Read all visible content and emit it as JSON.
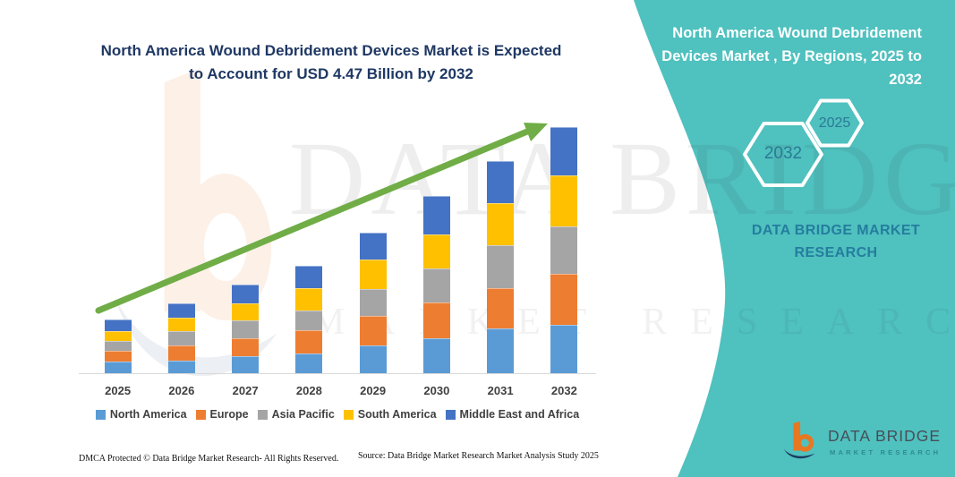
{
  "header": {
    "title_line1": "North America Wound Debridement Devices Market is Expected",
    "title_line2": "to Account for USD 4.47 Billion by 2032"
  },
  "right_panel": {
    "heading_lines": [
      "North America Wound Debridement",
      "Devices Market , By Regions, 2025 to",
      "2032"
    ],
    "hexagons": [
      {
        "label": "2032"
      },
      {
        "label": "2025"
      }
    ],
    "brand_line1": "DATA BRIDGE MARKET",
    "brand_line2": "RESEARCH"
  },
  "watermark": {
    "big_text": "DATA BRIDGE",
    "row_text": "MARKET RESEARCH",
    "logo_icon": "data-bridge-b-logo-watermark"
  },
  "footer": {
    "dmca": "DMCA Protected © Data Bridge Market Research-  All Rights Reserved.",
    "source": "Source: Data Bridge Market Research  Market Analysis Study 2025",
    "logo_icon": "data-bridge-logo",
    "logo_title": "DATA BRIDGE",
    "logo_subtitle": "MARKET RESEARCH"
  },
  "colors": {
    "teal_panel": "#4FC1BF",
    "title_navy": "#1F3864",
    "axis_text": "#404040",
    "axis_line": "#D9D9D9",
    "arrow_green": "#70AD47",
    "hex_label": "#2C7A96",
    "panel_brand_text": "#257D9E",
    "logo_orange": "#E87722",
    "logo_navy": "#1E3A5F",
    "logo_title_gray": "#474F58",
    "logo_subtitle_teal": "#2E8C8F"
  },
  "chart_data": {
    "type": "bar",
    "variant": "stacked-vertical",
    "title": "North America Wound Debridement Devices Market is Expected to Account for USD 4.47 Billion by 2032",
    "xlabel": "",
    "ylabel": "",
    "unit": "USD Billion",
    "values_estimated_from_pixels": true,
    "grid": false,
    "legend_position": "bottom",
    "categories": [
      "2025",
      "2026",
      "2027",
      "2028",
      "2029",
      "2030",
      "2031",
      "2032"
    ],
    "series": [
      {
        "name": "North America",
        "color": "#5B9BD5",
        "values": [
          0.21,
          0.23,
          0.31,
          0.36,
          0.5,
          0.63,
          0.81,
          0.88
        ]
      },
      {
        "name": "Europe",
        "color": "#ED7D31",
        "values": [
          0.2,
          0.28,
          0.33,
          0.42,
          0.54,
          0.65,
          0.73,
          0.93
        ]
      },
      {
        "name": "Asia Pacific",
        "color": "#A5A5A5",
        "values": [
          0.18,
          0.26,
          0.33,
          0.36,
          0.49,
          0.62,
          0.78,
          0.86
        ]
      },
      {
        "name": "South America",
        "color": "#FFC000",
        "values": [
          0.18,
          0.24,
          0.31,
          0.41,
          0.54,
          0.62,
          0.76,
          0.93
        ]
      },
      {
        "name": "Middle East and Africa",
        "color": "#4472C4",
        "values": [
          0.21,
          0.26,
          0.34,
          0.41,
          0.49,
          0.7,
          0.76,
          0.87
        ]
      }
    ],
    "totals": [
      0.98,
      1.27,
      1.62,
      1.96,
      2.56,
      3.22,
      3.84,
      4.47
    ],
    "annotations": {
      "trend_arrow": "upward diagonal arrow from first bar to last bar",
      "headline_value": "USD 4.47 Billion by 2032"
    }
  }
}
